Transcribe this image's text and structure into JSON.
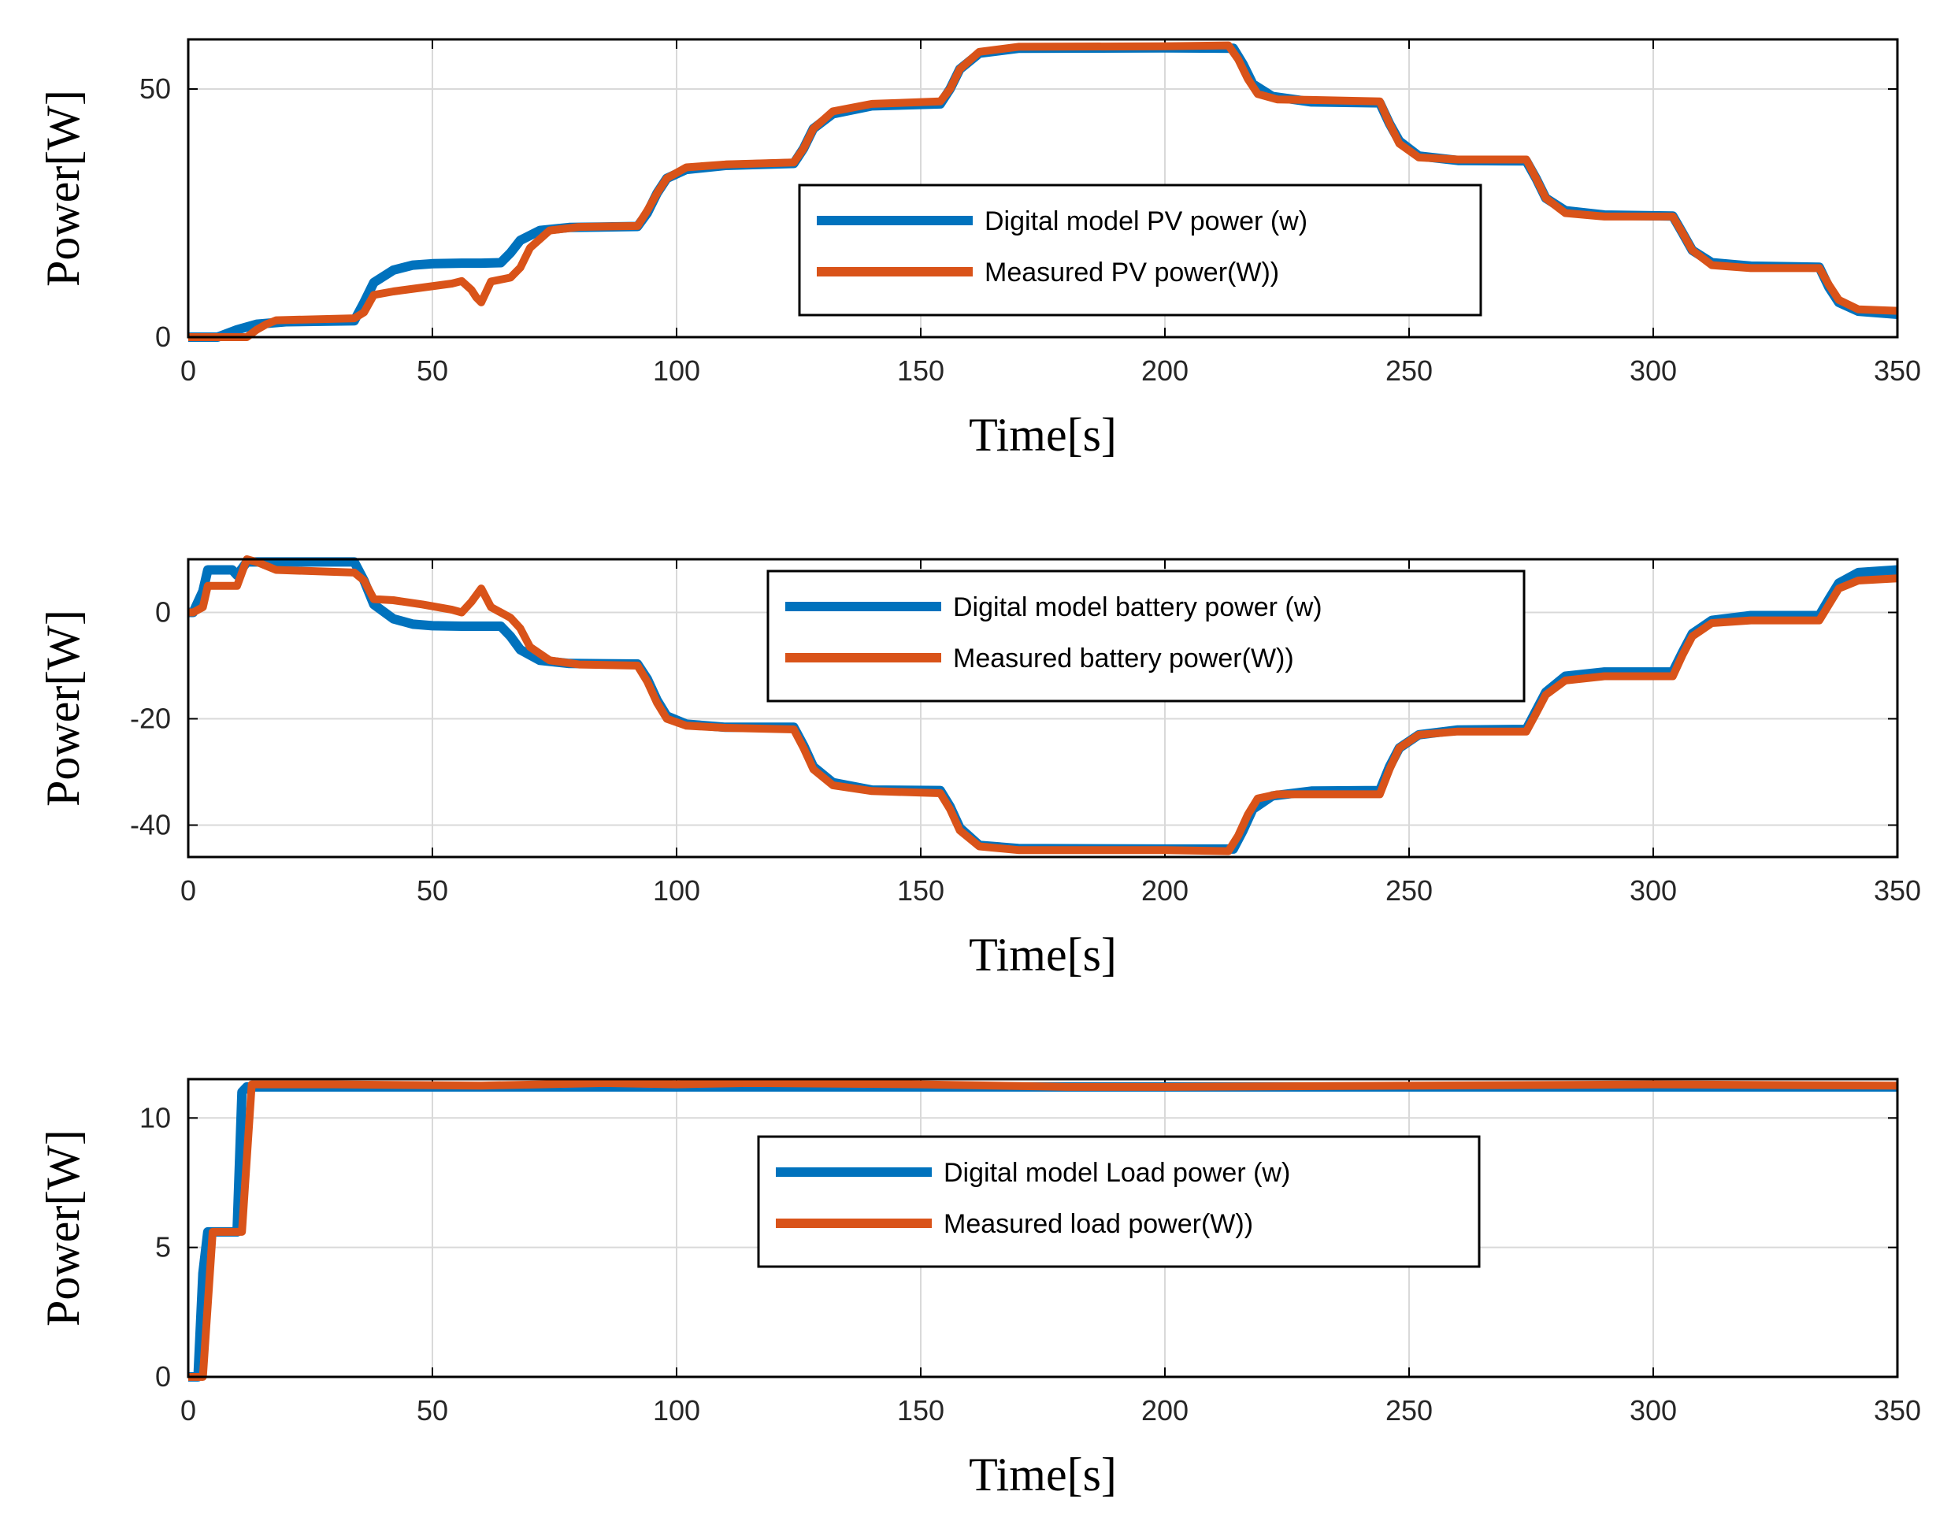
{
  "chart_data": [
    {
      "type": "line",
      "xlabel": "Time[s]",
      "ylabel": "Power[W]",
      "xlim": [
        0,
        350
      ],
      "ylim": [
        0,
        60
      ],
      "xticks": [
        "0",
        "50",
        "100",
        "150",
        "200",
        "250",
        "300",
        "350"
      ],
      "yticks": [
        "0",
        "50"
      ],
      "grid": true,
      "legend": "center-right",
      "series": [
        {
          "name": "Digital model PV power (w)",
          "color": "#0072BD",
          "x": [
            0,
            6,
            10,
            14,
            20,
            34,
            36,
            38,
            42,
            46,
            50,
            56,
            60,
            64,
            66,
            68,
            72,
            78,
            92,
            94,
            96,
            98,
            102,
            110,
            124,
            126,
            128,
            132,
            140,
            154,
            156,
            158,
            162,
            170,
            200,
            214,
            216,
            218,
            222,
            230,
            244,
            246,
            248,
            252,
            260,
            274,
            276,
            278,
            282,
            290,
            304,
            306,
            308,
            312,
            320,
            334,
            336,
            338,
            342,
            350
          ],
          "y": [
            0,
            0,
            1.5,
            2.6,
            3.1,
            3.3,
            7,
            11,
            13.5,
            14.5,
            14.8,
            14.9,
            14.9,
            15,
            17,
            19.5,
            21.5,
            22.1,
            22.3,
            25,
            29,
            32,
            33.8,
            34.6,
            35,
            38,
            42,
            45,
            46.6,
            47,
            50,
            54,
            57.2,
            58.2,
            58.3,
            58.2,
            55,
            51,
            48.5,
            47.4,
            47.2,
            43,
            39.5,
            36.5,
            35.6,
            35.5,
            32,
            28,
            25.5,
            24.6,
            24.4,
            21,
            17.5,
            15,
            14.3,
            14.1,
            10,
            7,
            5.2,
            4.6
          ]
        },
        {
          "name": "Measured PV  power(W))",
          "color": "#D95319",
          "x": [
            0,
            12,
            14,
            16,
            18,
            34,
            36,
            38,
            42,
            48,
            54,
            56,
            58,
            59,
            60,
            62,
            66,
            68,
            70,
            74,
            80,
            92,
            94,
            96,
            98,
            102,
            110,
            124,
            126,
            128,
            132,
            140,
            154,
            156,
            158,
            162,
            170,
            200,
            213,
            215,
            217,
            219,
            223,
            230,
            244,
            246,
            248,
            252,
            260,
            274,
            276,
            278,
            282,
            290,
            304,
            306,
            308,
            312,
            320,
            334,
            336,
            338,
            342,
            350
          ],
          "y": [
            0,
            0,
            1.5,
            2.6,
            3.4,
            3.8,
            5,
            8.5,
            9.2,
            10,
            10.8,
            11.3,
            9.5,
            8,
            7,
            11.2,
            12,
            14,
            18,
            21.5,
            22.2,
            22.4,
            25.5,
            29,
            32,
            34.2,
            34.8,
            35.2,
            38,
            42,
            45.5,
            47,
            47.5,
            50,
            54,
            57.5,
            58.5,
            58.6,
            58.8,
            56,
            52,
            49,
            47.9,
            47.8,
            47.5,
            43,
            39,
            36.2,
            35.8,
            35.8,
            32,
            28,
            25,
            24.3,
            24.3,
            21,
            17.5,
            14.5,
            13.9,
            13.9,
            10.5,
            7.5,
            5.6,
            5.3
          ]
        }
      ]
    },
    {
      "type": "line",
      "xlabel": "Time[s]",
      "ylabel": "Power[W]",
      "xlim": [
        0,
        350
      ],
      "ylim": [
        -46,
        10
      ],
      "xticks": [
        "0",
        "50",
        "100",
        "150",
        "200",
        "250",
        "300",
        "350"
      ],
      "yticks": [
        "0",
        "-20",
        "-40"
      ],
      "grid": true,
      "legend": "top-center",
      "series": [
        {
          "name": "Digital model battery power (w)",
          "color": "#0072BD",
          "x": [
            0,
            1,
            3,
            4,
            9,
            10,
            12,
            14,
            20,
            34,
            36,
            38,
            42,
            46,
            50,
            56,
            60,
            64,
            66,
            68,
            72,
            78,
            92,
            94,
            96,
            98,
            102,
            110,
            124,
            126,
            128,
            132,
            140,
            154,
            156,
            158,
            162,
            170,
            200,
            214,
            216,
            218,
            222,
            230,
            244,
            246,
            248,
            252,
            260,
            274,
            276,
            278,
            282,
            290,
            304,
            306,
            308,
            312,
            320,
            334,
            336,
            338,
            342,
            350
          ],
          "y": [
            0,
            0,
            4,
            8,
            8,
            7,
            9.5,
            9.5,
            9.5,
            9.5,
            6,
            1.5,
            -1.2,
            -2.2,
            -2.5,
            -2.6,
            -2.6,
            -2.6,
            -4.5,
            -7,
            -9,
            -9.6,
            -9.7,
            -12.5,
            -16.5,
            -19.5,
            -21,
            -21.6,
            -21.6,
            -25,
            -29,
            -32,
            -33.4,
            -33.5,
            -36.5,
            -40.5,
            -43.8,
            -44.4,
            -44.5,
            -44.5,
            -41,
            -37,
            -34.5,
            -33.6,
            -33.5,
            -29,
            -25.5,
            -23,
            -22.1,
            -22,
            -18.5,
            -15,
            -12,
            -11.2,
            -11.2,
            -7.5,
            -4,
            -1.5,
            -0.6,
            -0.6,
            2.5,
            5.5,
            7.5,
            8
          ]
        },
        {
          "name": "Measured battery  power(W))",
          "color": "#D95319",
          "x": [
            0,
            1,
            3,
            4,
            10,
            12,
            14,
            18,
            34,
            36,
            38,
            42,
            48,
            54,
            56,
            58,
            60,
            62,
            66,
            68,
            70,
            74,
            80,
            92,
            94,
            96,
            98,
            102,
            110,
            124,
            126,
            128,
            132,
            140,
            154,
            156,
            158,
            162,
            170,
            200,
            213,
            215,
            217,
            219,
            223,
            230,
            244,
            246,
            248,
            252,
            260,
            274,
            276,
            278,
            282,
            290,
            304,
            306,
            308,
            312,
            320,
            334,
            336,
            338,
            342,
            350
          ],
          "y": [
            0,
            0,
            1,
            5,
            5,
            10,
            9.5,
            8,
            7.5,
            6,
            2.5,
            2.3,
            1.5,
            0.5,
            0,
            2,
            4.5,
            1,
            -1,
            -3,
            -6.5,
            -9,
            -9.8,
            -10,
            -13,
            -17,
            -20,
            -21.3,
            -21.7,
            -22,
            -25.5,
            -29.5,
            -32.5,
            -33.6,
            -34,
            -37,
            -41,
            -44,
            -44.7,
            -44.7,
            -44.9,
            -42,
            -38,
            -35,
            -34.2,
            -34.2,
            -34.2,
            -29.5,
            -25.5,
            -23,
            -22.4,
            -22.4,
            -19,
            -15.5,
            -12.8,
            -12,
            -12,
            -8,
            -4.5,
            -2,
            -1.5,
            -1.5,
            1.5,
            4.5,
            6,
            6.4
          ]
        }
      ]
    },
    {
      "type": "line",
      "xlabel": "Time[s]",
      "ylabel": "Power[W]",
      "xlim": [
        0,
        350
      ],
      "ylim": [
        0,
        11.5
      ],
      "xticks": [
        "0",
        "50",
        "100",
        "150",
        "200",
        "250",
        "300",
        "350"
      ],
      "yticks": [
        "0",
        "5",
        "10"
      ],
      "grid": true,
      "legend": "center-right",
      "series": [
        {
          "name": "Digital model Load power (w)",
          "color": "#0072BD",
          "x": [
            0,
            2,
            3,
            4,
            5,
            10,
            11,
            12,
            20,
            60,
            100,
            150,
            200,
            250,
            300,
            350
          ],
          "y": [
            0,
            0,
            4,
            5.6,
            5.6,
            5.6,
            11,
            11.2,
            11.2,
            11.2,
            11.2,
            11.2,
            11.2,
            11.2,
            11.2,
            11.2
          ]
        },
        {
          "name": "Measured load  power(W))",
          "color": "#D95319",
          "x": [
            0,
            3,
            5,
            11,
            13,
            30,
            60,
            85,
            100,
            115,
            150,
            180,
            200,
            250,
            300,
            350
          ],
          "y": [
            0,
            0,
            5.6,
            5.6,
            11.3,
            11.3,
            11.25,
            11.35,
            11.3,
            11.35,
            11.3,
            11.2,
            11.2,
            11.25,
            11.3,
            11.25
          ]
        }
      ]
    }
  ]
}
